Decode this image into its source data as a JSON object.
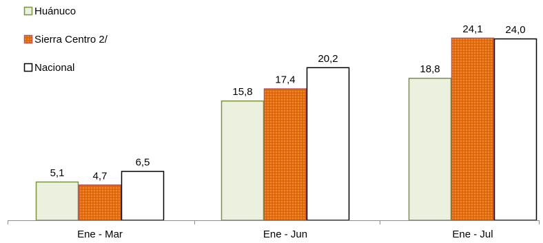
{
  "chart_data": {
    "type": "bar",
    "categories": [
      "Ene - Mar",
      "Ene - Jun",
      "Ene - Jul"
    ],
    "series": [
      {
        "name": "Huánuco",
        "values": [
          5.1,
          15.8,
          18.8
        ],
        "labels": [
          "5,1",
          "15,8",
          "18,8"
        ],
        "fill": "#ebf1de",
        "stroke": "#77933c",
        "pattern": "solid"
      },
      {
        "name": "Sierra Centro 2/",
        "values": [
          4.7,
          17.4,
          24.1
        ],
        "labels": [
          "4,7",
          "17,4",
          "24,1"
        ],
        "fill": "#e46c0a",
        "stroke": "#c0504d",
        "pattern": "dotted-orange"
      },
      {
        "name": "Nacional",
        "values": [
          6.5,
          20.2,
          24.0
        ],
        "labels": [
          "6,5",
          "20,2",
          "24,0"
        ],
        "fill": "#ffffff",
        "stroke": "#000000",
        "pattern": "solid"
      }
    ],
    "ylim": [
      0,
      26
    ],
    "grid": false,
    "legend_position": "top-left"
  }
}
